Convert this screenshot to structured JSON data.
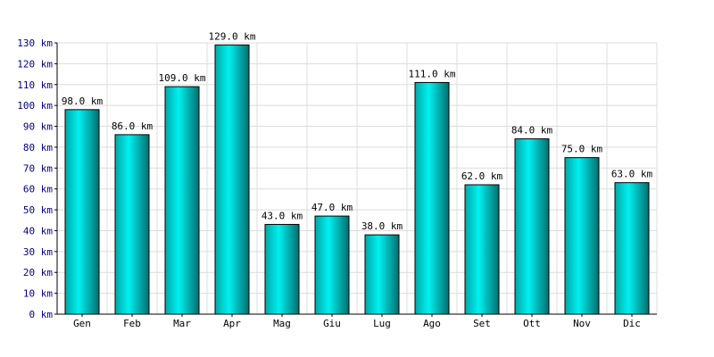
{
  "chart_data": {
    "type": "bar",
    "categories": [
      "Gen",
      "Feb",
      "Mar",
      "Apr",
      "Mag",
      "Giu",
      "Lug",
      "Ago",
      "Set",
      "Ott",
      "Nov",
      "Dic"
    ],
    "values": [
      98,
      86,
      109,
      129,
      43,
      47,
      38,
      111,
      62,
      84,
      75,
      63
    ],
    "data_labels": [
      "98.0 km",
      "86.0 km",
      "109.0 km",
      "129.0 km",
      "43.0 km",
      "47.0 km",
      "38.0 km",
      "111.0 km",
      "62.0 km",
      "84.0 km",
      "75.0 km",
      "63.0 km"
    ],
    "y_ticks": [
      "0 km",
      "10 km",
      "20 km",
      "30 km",
      "40 km",
      "50 km",
      "60 km",
      "70 km",
      "80 km",
      "90 km",
      "100 km",
      "110 km",
      "120 km",
      "130 km"
    ],
    "ylim": [
      0,
      130
    ],
    "y_step": 10,
    "title": "",
    "xlabel": "",
    "ylabel": "",
    "grid": true,
    "legend": "none",
    "colors": {
      "bar_light": "#00ffff",
      "bar_dark": "#008080",
      "grid": "#dcdcdc",
      "ytick": "#000080"
    }
  }
}
